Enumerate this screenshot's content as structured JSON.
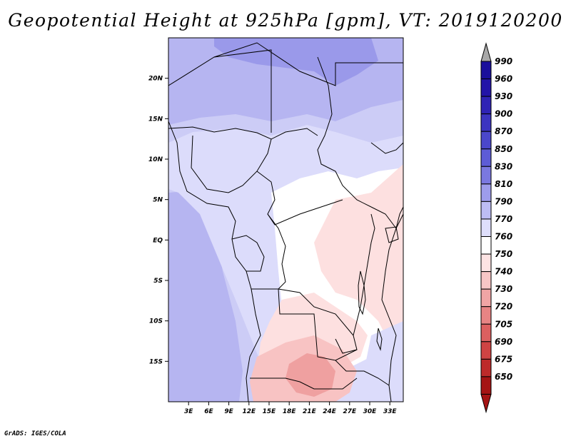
{
  "title": "Geopotential Height at 925hPa [gpm], VT: 2019120200",
  "credit": "GrADS: IGES/COLA",
  "map": {
    "lon_range": [
      0,
      35
    ],
    "lat_range": [
      -20,
      25
    ],
    "lon_ticks": [
      {
        "value": 3,
        "label": "3E"
      },
      {
        "value": 6,
        "label": "6E"
      },
      {
        "value": 9,
        "label": "9E"
      },
      {
        "value": 12,
        "label": "12E"
      },
      {
        "value": 15,
        "label": "15E"
      },
      {
        "value": 18,
        "label": "18E"
      },
      {
        "value": 21,
        "label": "21E"
      },
      {
        "value": 24,
        "label": "24E"
      },
      {
        "value": 27,
        "label": "27E"
      },
      {
        "value": 30,
        "label": "30E"
      },
      {
        "value": 33,
        "label": "33E"
      }
    ],
    "lat_ticks": [
      {
        "value": 20,
        "label": "20N"
      },
      {
        "value": 15,
        "label": "15N"
      },
      {
        "value": 10,
        "label": "10N"
      },
      {
        "value": 5,
        "label": "5N"
      },
      {
        "value": 0,
        "label": "EQ"
      },
      {
        "value": -5,
        "label": "5S"
      },
      {
        "value": -10,
        "label": "10S"
      },
      {
        "value": -15,
        "label": "15S"
      }
    ]
  },
  "colorbar": {
    "levels": [
      {
        "label": "990",
        "color": "#1a0f9c"
      },
      {
        "label": "960",
        "color": "#2314a8"
      },
      {
        "label": "930",
        "color": "#2f23b5"
      },
      {
        "label": "900",
        "color": "#3c34c0"
      },
      {
        "label": "870",
        "color": "#4b47cb"
      },
      {
        "label": "850",
        "color": "#5d5cd6"
      },
      {
        "label": "830",
        "color": "#7a78e0"
      },
      {
        "label": "810",
        "color": "#9d9ceb"
      },
      {
        "label": "790",
        "color": "#bdbdf4"
      },
      {
        "label": "770",
        "color": "#dedefb"
      },
      {
        "label": "760",
        "color": "#ffffff"
      },
      {
        "label": "750",
        "color": "#fde3e3"
      },
      {
        "label": "740",
        "color": "#f8c6c6"
      },
      {
        "label": "730",
        "color": "#f0a5a5"
      },
      {
        "label": "720",
        "color": "#e78484"
      },
      {
        "label": "705",
        "color": "#dc6060"
      },
      {
        "label": "690",
        "color": "#cf4343"
      },
      {
        "label": "675",
        "color": "#bd2a2a"
      },
      {
        "label": "650",
        "color": "#a51414"
      }
    ],
    "top_arrow_color": "#a8a8a8",
    "bottom_arrow_color": "#a51414"
  },
  "field_colors": {
    "c830": "#9a99ea",
    "c810": "#b6b5f1",
    "c790": "#ccccf6",
    "c770": "#dcdcfb",
    "c760": "#ffffff",
    "c750": "#fde0e0",
    "c740": "#f8c3c3",
    "c730": "#efa0a0"
  }
}
